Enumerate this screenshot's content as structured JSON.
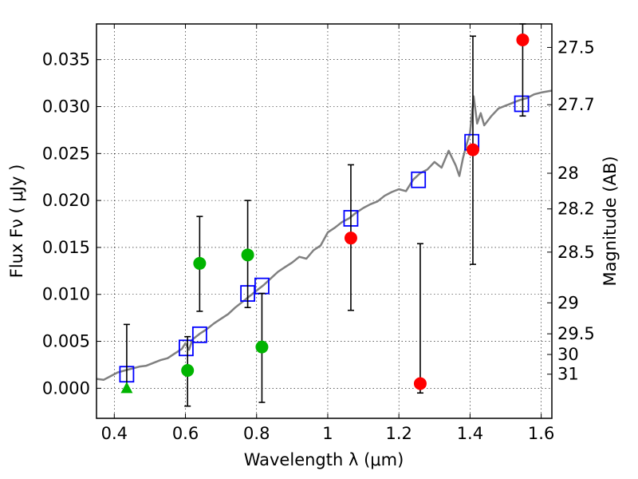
{
  "chart_data": {
    "type": "scatter",
    "xlabel": "Wavelength  λ (μm)",
    "ylabel": "Flux  Fν  ( μJy )",
    "y2label": "Magnitude (AB)",
    "xlim": [
      0.35,
      1.63
    ],
    "ylim": [
      -0.0032,
      0.0388
    ],
    "grid": true,
    "x_ticks": [
      0.4,
      0.6,
      0.8,
      1.0,
      1.2,
      1.4,
      1.6
    ],
    "x_tick_labels": [
      "0.4",
      "0.6",
      "0.8",
      "1",
      "1.2",
      "1.4",
      "1.6"
    ],
    "y_ticks": [
      0.0,
      0.005,
      0.01,
      0.015,
      0.02,
      0.025,
      0.03,
      0.035
    ],
    "y_tick_labels": [
      "0.000",
      "0.005",
      "0.010",
      "0.015",
      "0.020",
      "0.025",
      "0.030",
      "0.035"
    ],
    "mag_ticks": [
      {
        "label": "27.5",
        "flux": 0.0363
      },
      {
        "label": "27.7",
        "flux": 0.0302
      },
      {
        "label": "28",
        "flux": 0.0229
      },
      {
        "label": "28.2",
        "flux": 0.0191
      },
      {
        "label": "28.5",
        "flux": 0.0145
      },
      {
        "label": "29",
        "flux": 0.0091
      },
      {
        "label": "29.5",
        "flux": 0.0058
      },
      {
        "label": "30",
        "flux": 0.0036
      },
      {
        "label": "31",
        "flux": 0.0015
      }
    ],
    "series": [
      {
        "kind": "line",
        "color": "#808080",
        "x": [
          0.35,
          0.37,
          0.39,
          0.41,
          0.43,
          0.45,
          0.47,
          0.49,
          0.51,
          0.53,
          0.55,
          0.57,
          0.59,
          0.6,
          0.61,
          0.62,
          0.64,
          0.66,
          0.68,
          0.7,
          0.72,
          0.74,
          0.76,
          0.78,
          0.8,
          0.82,
          0.84,
          0.86,
          0.88,
          0.9,
          0.92,
          0.94,
          0.96,
          0.98,
          1.0,
          1.02,
          1.04,
          1.06,
          1.08,
          1.1,
          1.12,
          1.14,
          1.16,
          1.18,
          1.2,
          1.22,
          1.24,
          1.26,
          1.28,
          1.3,
          1.32,
          1.34,
          1.36,
          1.37,
          1.38,
          1.39,
          1.4,
          1.41,
          1.42,
          1.43,
          1.44,
          1.46,
          1.48,
          1.5,
          1.52,
          1.54,
          1.56,
          1.58,
          1.6,
          1.63
        ],
        "y": [
          0.001,
          0.0009,
          0.0013,
          0.0017,
          0.0019,
          0.0021,
          0.0023,
          0.0024,
          0.0027,
          0.003,
          0.0032,
          0.0037,
          0.0042,
          0.0048,
          0.0041,
          0.0052,
          0.0058,
          0.0063,
          0.0069,
          0.0074,
          0.0079,
          0.0086,
          0.0092,
          0.0098,
          0.0104,
          0.011,
          0.0117,
          0.0124,
          0.0129,
          0.0134,
          0.014,
          0.0138,
          0.0147,
          0.0152,
          0.0166,
          0.0171,
          0.0177,
          0.0181,
          0.0187,
          0.0192,
          0.0196,
          0.0199,
          0.0205,
          0.0209,
          0.0212,
          0.021,
          0.0222,
          0.0229,
          0.0233,
          0.0241,
          0.0235,
          0.0253,
          0.0237,
          0.0226,
          0.0245,
          0.0259,
          0.0272,
          0.0311,
          0.0282,
          0.0293,
          0.028,
          0.029,
          0.0298,
          0.0301,
          0.0304,
          0.0307,
          0.0309,
          0.0313,
          0.0315,
          0.0317
        ]
      },
      {
        "kind": "open-square",
        "color": "#0000ff",
        "x": [
          0.435,
          0.602,
          0.64,
          0.775,
          0.815,
          1.065,
          1.255,
          1.405,
          1.545
        ],
        "y": [
          0.0015,
          0.0043,
          0.0057,
          0.0101,
          0.0109,
          0.0181,
          0.0222,
          0.0262,
          0.0303
        ]
      },
      {
        "kind": "circle",
        "color": "#00b400",
        "x": [
          0.606,
          0.64,
          0.775,
          0.815
        ],
        "y": [
          0.0019,
          0.0133,
          0.0142,
          0.0044
        ],
        "errorbars": [
          {
            "x": 0.606,
            "low": -0.0019,
            "high": 0.0055
          },
          {
            "x": 0.64,
            "low": 0.0082,
            "high": 0.0183
          },
          {
            "x": 0.775,
            "low": 0.0086,
            "high": 0.02
          },
          {
            "x": 0.815,
            "low": -0.0015,
            "high": 0.0101
          }
        ]
      },
      {
        "kind": "triangle",
        "color": "#00b400",
        "x": [
          0.435
        ],
        "y": [
          0.0
        ],
        "errorbars": [
          {
            "x": 0.435,
            "low": 0.0,
            "high": 0.0068
          }
        ]
      },
      {
        "kind": "circle",
        "color": "#ff0000",
        "x": [
          1.065,
          1.26,
          1.408,
          1.548
        ],
        "y": [
          0.016,
          0.0005,
          0.0254,
          0.0371
        ],
        "errorbars": [
          {
            "x": 1.065,
            "low": 0.0083,
            "high": 0.0238
          },
          {
            "x": 1.26,
            "low": -0.0005,
            "high": 0.0154
          },
          {
            "x": 1.408,
            "low": 0.0132,
            "high": 0.0375
          },
          {
            "x": 1.548,
            "low": 0.029,
            "high": 0.0388
          }
        ]
      }
    ]
  }
}
